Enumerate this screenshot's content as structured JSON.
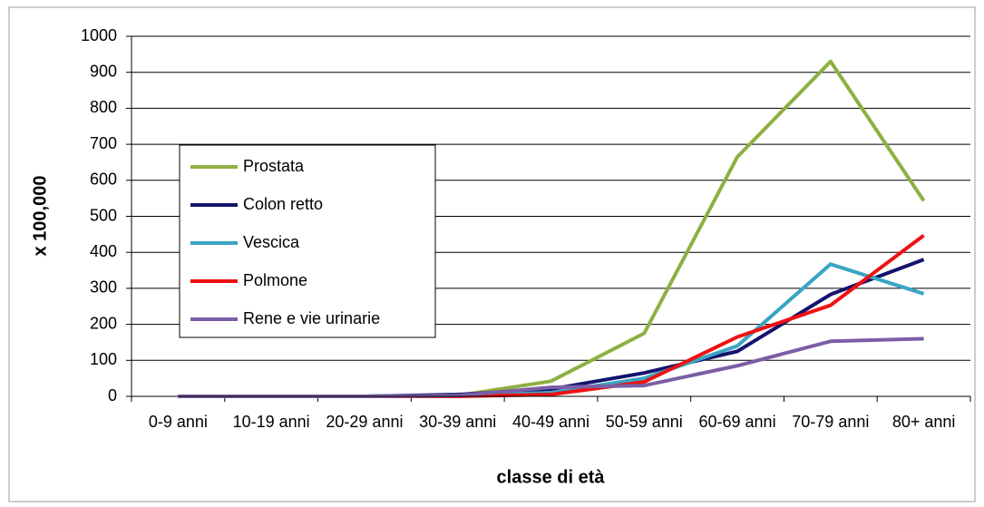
{
  "chart_data": {
    "type": "line",
    "y_label": "x 100,000",
    "x_label": "classe di età",
    "categories": [
      "0-9 anni",
      "10-19 anni",
      "20-29 anni",
      "30-39 anni",
      "40-49 anni",
      "50-59 anni",
      "60-69 anni",
      "70-79 anni",
      "80+ anni"
    ],
    "series": [
      {
        "name": "Prostata",
        "color": "#8db043",
        "values": [
          0,
          0,
          0,
          2,
          42,
          175,
          665,
          930,
          543
        ]
      },
      {
        "name": "Colon retto",
        "color": "#14146e",
        "values": [
          0,
          0,
          0,
          5,
          20,
          65,
          125,
          283,
          380
        ]
      },
      {
        "name": "Vescica",
        "color": "#3aa5c2",
        "values": [
          0,
          0,
          0,
          2,
          10,
          50,
          140,
          367,
          285
        ]
      },
      {
        "name": "Polmone",
        "color": "#ee1111",
        "values": [
          0,
          0,
          0,
          0,
          5,
          40,
          165,
          253,
          447
        ]
      },
      {
        "name": "Rene e vie urinarie",
        "color": "#7b5ea6",
        "values": [
          0,
          0,
          0,
          2,
          25,
          30,
          85,
          153,
          160
        ]
      }
    ],
    "ylim": [
      0,
      1000
    ],
    "yticks": [
      0,
      100,
      200,
      300,
      400,
      500,
      600,
      700,
      800,
      900,
      1000
    ],
    "grid": true
  }
}
